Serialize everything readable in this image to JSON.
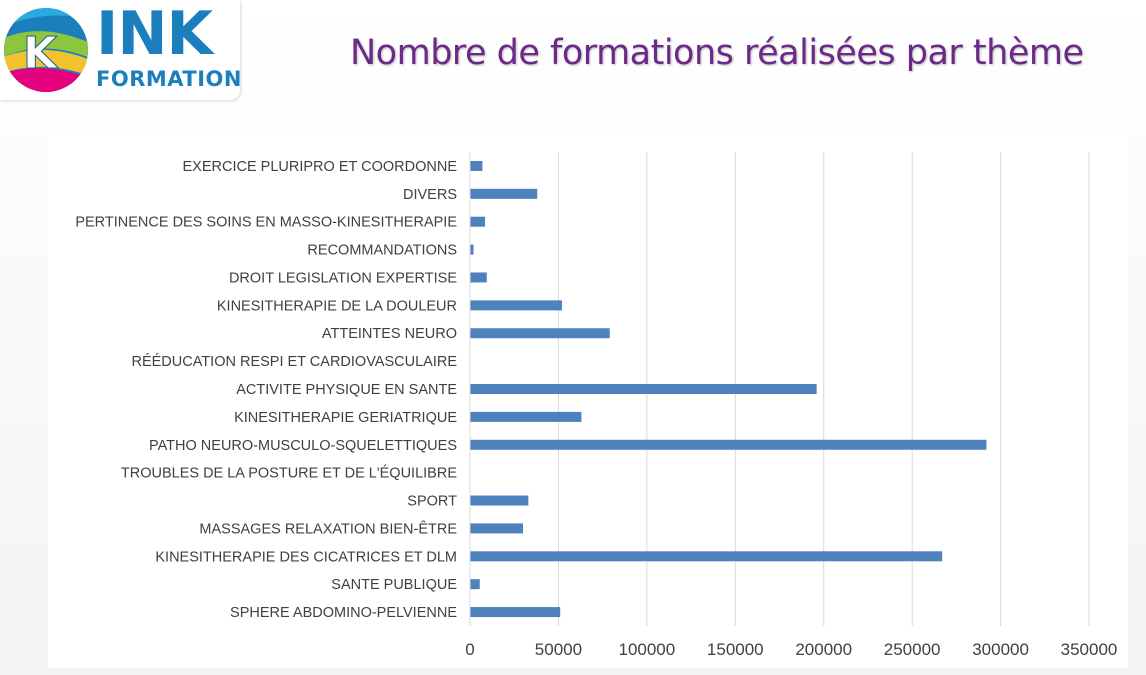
{
  "logo": {
    "brand": "INK",
    "sub": "FORMATION",
    "letter": "K"
  },
  "slide": {
    "title": "Nombre de formations réalisées par thème"
  },
  "colors": {
    "title": "#6b2a87",
    "bar": "#4f81bd",
    "grid": "#d9d9d9",
    "brand": "#1b7fbd"
  },
  "chart_data": {
    "type": "bar",
    "orientation": "horizontal",
    "title": "",
    "xlabel": "",
    "ylabel": "",
    "xlim": [
      0,
      350000
    ],
    "xticks": [
      0,
      50000,
      100000,
      150000,
      200000,
      250000,
      300000,
      350000
    ],
    "grid": "vertical",
    "legend": "none",
    "categories": [
      "EXERCICE PLURIPRO ET  COORDONNE",
      "DIVERS",
      "PERTINENCE DES SOINS EN MASSO-KINESITHERAPIE",
      "RECOMMANDATIONS",
      "DROIT LEGISLATION EXPERTISE",
      "KINESITHERAPIE DE LA DOULEUR",
      "ATTEINTES NEURO",
      "RÉÉDUCATION RESPI ET CARDIOVASCULAIRE",
      "ACTIVITE PHYSIQUE EN SANTE",
      "KINESITHERAPIE GERIATRIQUE",
      "PATHO NEURO-MUSCULO-SQUELETTIQUES",
      "TROUBLES DE LA POSTURE ET DE L'ÉQUILIBRE",
      "SPORT",
      "MASSAGES RELAXATION BIEN-ÊTRE",
      "KINESITHERAPIE DES CICATRICES ET DLM",
      "SANTE PUBLIQUE",
      "SPHERE ABDOMINO-PELVIENNE"
    ],
    "values": [
      7000,
      38000,
      8500,
      2000,
      9500,
      52000,
      79000,
      0,
      196000,
      63000,
      292000,
      0,
      33000,
      30000,
      267000,
      5500,
      51000
    ]
  }
}
